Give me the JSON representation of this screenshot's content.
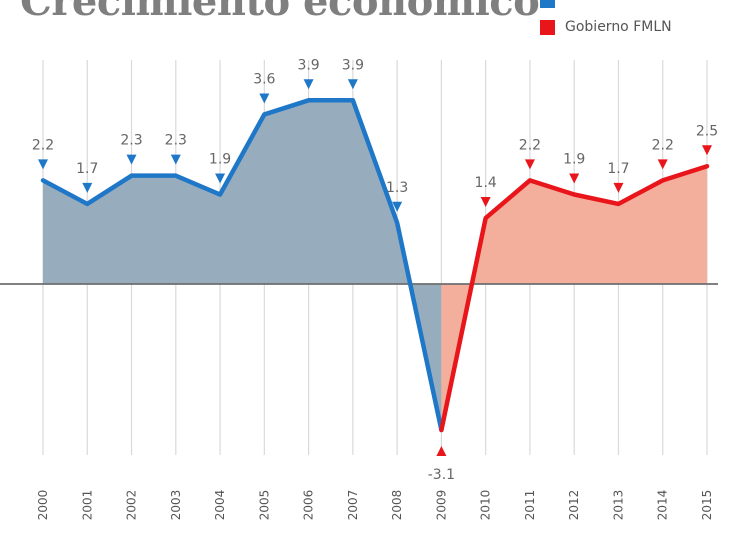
{
  "chart_data": {
    "type": "area",
    "title": "Crecimiento económico",
    "xlabel": "",
    "ylabel": "",
    "x": [
      "2000",
      "2001",
      "2002",
      "2003",
      "2004",
      "2005",
      "2006",
      "2007",
      "2008",
      "2009",
      "2010",
      "2011",
      "2012",
      "2013",
      "2014",
      "2015"
    ],
    "series": [
      {
        "name": "",
        "color": "#1f77c8",
        "fill": "#97adbe",
        "marker_color": "#1f77c8",
        "x": [
          "2000",
          "2001",
          "2002",
          "2003",
          "2004",
          "2005",
          "2006",
          "2007",
          "2008",
          "2009"
        ],
        "values": [
          2.2,
          1.7,
          2.3,
          2.3,
          1.9,
          3.6,
          3.9,
          3.9,
          1.3,
          -3.1
        ]
      },
      {
        "name": "Gobierno FMLN",
        "color": "#e8161b",
        "fill": "#f3ae9c",
        "marker_color": "#e8161b",
        "x": [
          "2009",
          "2010",
          "2011",
          "2012",
          "2013",
          "2014",
          "2015"
        ],
        "values": [
          -3.1,
          1.4,
          2.2,
          1.9,
          1.7,
          2.2,
          2.5
        ]
      }
    ],
    "data_labels": [
      {
        "x": "2000",
        "label": "2.2"
      },
      {
        "x": "2001",
        "label": "1.7"
      },
      {
        "x": "2002",
        "label": "2.3"
      },
      {
        "x": "2003",
        "label": "2.3"
      },
      {
        "x": "2004",
        "label": "1.9"
      },
      {
        "x": "2005",
        "label": "3.6"
      },
      {
        "x": "2006",
        "label": "3.9"
      },
      {
        "x": "2007",
        "label": "3.9"
      },
      {
        "x": "2008",
        "label": "1.3"
      },
      {
        "x": "2009",
        "label": "-3.1"
      },
      {
        "x": "2010",
        "label": "1.4"
      },
      {
        "x": "2011",
        "label": "2.2"
      },
      {
        "x": "2012",
        "label": "1.9"
      },
      {
        "x": "2013",
        "label": "1.7"
      },
      {
        "x": "2014",
        "label": "2.2"
      },
      {
        "x": "2015",
        "label": "2.5"
      }
    ],
    "ylim": [
      -3.6,
      4.5
    ],
    "grid": "vertical",
    "legend_position": "top-right",
    "zero_line": true
  }
}
